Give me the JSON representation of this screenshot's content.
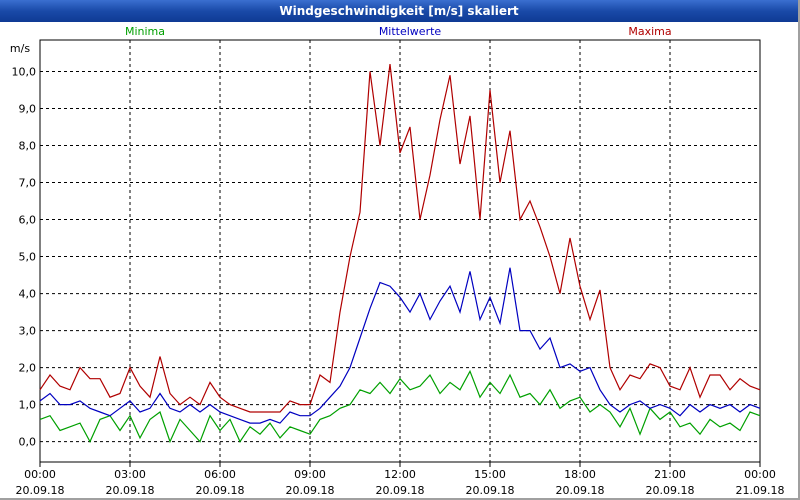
{
  "chart_data": {
    "type": "line",
    "title": "Windgeschwindigkeit [m/s] skaliert",
    "y_label": "m/s",
    "xlim": [
      0,
      24
    ],
    "xticks": [
      {
        "value": 0,
        "label": "00:00 20.09.18"
      },
      {
        "value": 3,
        "label": "03:00 20.09.18"
      },
      {
        "value": 6,
        "label": "06:00 20.09.18"
      },
      {
        "value": 9,
        "label": "09:00 20.09.18"
      },
      {
        "value": 12,
        "label": "12:00 20.09.18"
      },
      {
        "value": 15,
        "label": "15:00 20.09.18"
      },
      {
        "value": 18,
        "label": "18:00 20.09.18"
      },
      {
        "value": 21,
        "label": "21:00 20.09.18"
      },
      {
        "value": 24,
        "label": "00:00 21.09.18"
      }
    ],
    "ylim": [
      -0.55,
      10.85
    ],
    "yticks": [
      {
        "value": 0,
        "label": "0,0"
      },
      {
        "value": 1,
        "label": "1,0"
      },
      {
        "value": 2,
        "label": "2,0"
      },
      {
        "value": 3,
        "label": "3,0"
      },
      {
        "value": 4,
        "label": "4,0"
      },
      {
        "value": 5,
        "label": "5,0"
      },
      {
        "value": 6,
        "label": "6,0"
      },
      {
        "value": 7,
        "label": "7,0"
      },
      {
        "value": 8,
        "label": "8,0"
      },
      {
        "value": 9,
        "label": "9,0"
      },
      {
        "value": 10,
        "label": "10,0"
      }
    ],
    "grid": true,
    "x": [
      0,
      0.333,
      0.667,
      1,
      1.333,
      1.667,
      2,
      2.333,
      2.667,
      3,
      3.333,
      3.667,
      4,
      4.333,
      4.667,
      5,
      5.333,
      5.667,
      6,
      6.333,
      6.667,
      7,
      7.333,
      7.667,
      8,
      8.333,
      8.667,
      9,
      9.333,
      9.667,
      10,
      10.333,
      10.667,
      11,
      11.333,
      11.667,
      12,
      12.333,
      12.667,
      13,
      13.333,
      13.667,
      14,
      14.333,
      14.667,
      15,
      15.333,
      15.667,
      16,
      16.333,
      16.667,
      17,
      17.333,
      17.667,
      18,
      18.333,
      18.667,
      19,
      19.333,
      19.667,
      20,
      20.333,
      20.667,
      21,
      21.333,
      21.667,
      22,
      22.333,
      22.667,
      23,
      23.333,
      23.667,
      24
    ],
    "series": [
      {
        "name": "Minima",
        "color": "#00a000",
        "values": [
          0.6,
          0.7,
          0.3,
          0.4,
          0.5,
          0.0,
          0.6,
          0.7,
          0.3,
          0.7,
          0.1,
          0.6,
          0.8,
          0.0,
          0.6,
          0.3,
          0.0,
          0.7,
          0.3,
          0.6,
          0.0,
          0.4,
          0.2,
          0.5,
          0.1,
          0.4,
          0.3,
          0.2,
          0.6,
          0.7,
          0.9,
          1.0,
          1.4,
          1.3,
          1.6,
          1.3,
          1.7,
          1.4,
          1.5,
          1.8,
          1.3,
          1.6,
          1.4,
          1.9,
          1.2,
          1.6,
          1.3,
          1.8,
          1.2,
          1.3,
          1.0,
          1.4,
          0.9,
          1.1,
          1.2,
          0.8,
          1.0,
          0.8,
          0.4,
          0.9,
          0.2,
          0.9,
          0.6,
          0.8,
          0.4,
          0.5,
          0.2,
          0.6,
          0.4,
          0.5,
          0.3,
          0.8,
          0.7
        ]
      },
      {
        "name": "Mittelwerte",
        "color": "#0000c0",
        "values": [
          1.1,
          1.3,
          1.0,
          1.0,
          1.1,
          0.9,
          0.8,
          0.7,
          0.9,
          1.1,
          0.8,
          0.9,
          1.3,
          0.9,
          0.8,
          1.0,
          0.8,
          1.0,
          0.8,
          0.7,
          0.6,
          0.5,
          0.5,
          0.6,
          0.5,
          0.8,
          0.7,
          0.7,
          0.9,
          1.2,
          1.5,
          2.0,
          2.8,
          3.6,
          4.3,
          4.2,
          3.9,
          3.5,
          4.0,
          3.3,
          3.8,
          4.2,
          3.5,
          4.6,
          3.3,
          3.9,
          3.2,
          4.7,
          3.0,
          3.0,
          2.5,
          2.8,
          2.0,
          2.1,
          1.9,
          2.0,
          1.4,
          1.0,
          0.8,
          1.0,
          1.1,
          0.9,
          1.0,
          0.9,
          0.7,
          1.0,
          0.8,
          1.0,
          0.9,
          1.0,
          0.8,
          1.0,
          0.9
        ]
      },
      {
        "name": "Maxima",
        "color": "#b00000",
        "values": [
          1.4,
          1.8,
          1.5,
          1.4,
          2.0,
          1.7,
          1.7,
          1.2,
          1.3,
          2.0,
          1.5,
          1.2,
          2.3,
          1.3,
          1.0,
          1.2,
          1.0,
          1.6,
          1.2,
          1.0,
          0.9,
          0.8,
          0.8,
          0.8,
          0.8,
          1.1,
          1.0,
          1.0,
          1.8,
          1.6,
          3.5,
          5.0,
          6.2,
          10.0,
          8.0,
          10.2,
          7.8,
          8.5,
          6.0,
          7.2,
          8.7,
          9.9,
          7.5,
          8.8,
          6.0,
          9.5,
          7.0,
          8.4,
          6.0,
          6.5,
          5.8,
          5.0,
          4.0,
          5.5,
          4.2,
          3.3,
          4.1,
          2.0,
          1.4,
          1.8,
          1.7,
          2.1,
          2.0,
          1.5,
          1.4,
          2.0,
          1.2,
          1.8,
          1.8,
          1.4,
          1.7,
          1.5,
          1.4
        ]
      }
    ]
  }
}
